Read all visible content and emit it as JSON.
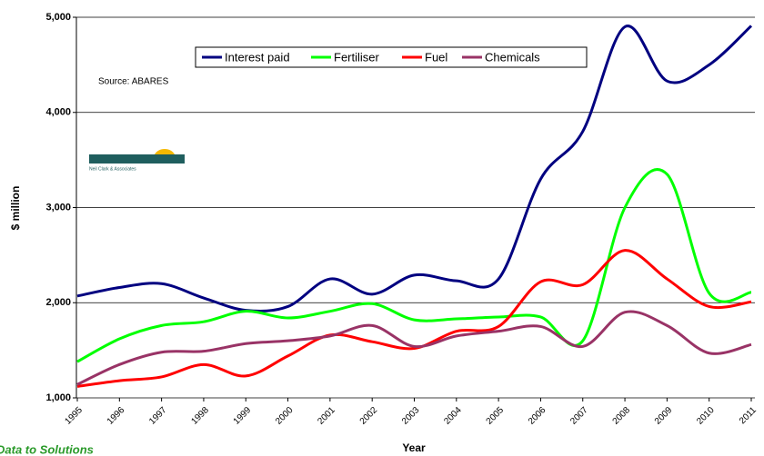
{
  "chart_data": {
    "type": "line",
    "xlabel": "Year",
    "ylabel": "$ million",
    "source": "Source:  ABARES",
    "footer": "Data to Solutions",
    "logo_text": "Neil Clark & Associates",
    "categories": [
      "1995",
      "1996",
      "1997",
      "1998",
      "1999",
      "2000",
      "2001",
      "2002",
      "2003",
      "2004",
      "2005",
      "2006",
      "2007",
      "2008",
      "2009",
      "2010",
      "2011"
    ],
    "series": [
      {
        "name": "Interest paid",
        "color": "#000080",
        "values": [
          2070,
          2160,
          2200,
          2050,
          1920,
          1960,
          2250,
          2090,
          2290,
          2230,
          2250,
          3300,
          3800,
          4900,
          4330,
          4500,
          4910
        ]
      },
      {
        "name": "Fertiliser",
        "color": "#00ff00",
        "values": [
          1380,
          1620,
          1760,
          1800,
          1910,
          1840,
          1910,
          1990,
          1820,
          1830,
          1850,
          1850,
          1600,
          3000,
          3350,
          2100,
          2110
        ]
      },
      {
        "name": "Fuel",
        "color": "#ff0000",
        "values": [
          1120,
          1180,
          1220,
          1350,
          1230,
          1440,
          1660,
          1590,
          1520,
          1700,
          1750,
          2220,
          2190,
          2550,
          2250,
          1960,
          2010
        ]
      },
      {
        "name": "Chemicals",
        "color": "#993366",
        "values": [
          1140,
          1350,
          1480,
          1490,
          1570,
          1600,
          1650,
          1760,
          1540,
          1650,
          1700,
          1750,
          1540,
          1900,
          1760,
          1470,
          1560
        ]
      }
    ],
    "ylim": [
      1000,
      5000
    ],
    "yticks": [
      {
        "value": 1000,
        "label": "1,000"
      },
      {
        "value": 2000,
        "label": "2,000"
      },
      {
        "value": 3000,
        "label": "3,000"
      },
      {
        "value": 4000,
        "label": "4,000"
      },
      {
        "value": 5000,
        "label": "5,000"
      }
    ],
    "grid": true,
    "legend": "top"
  }
}
